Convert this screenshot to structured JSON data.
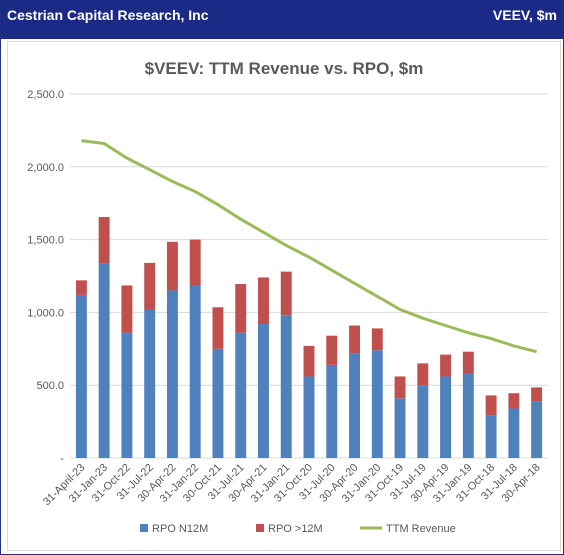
{
  "header": {
    "company": "Cestrian Capital Research, Inc",
    "ticker": "VEEV, $m"
  },
  "colors": {
    "header_bg": "#1b2a86",
    "rpo_n12m": "#4f81bd",
    "rpo_gt12m": "#c0504d",
    "ttm_revenue": "#9bbb59",
    "gridline": "#d9d9d9"
  },
  "chart_data": {
    "type": "bar",
    "title": "$VEEV: TTM Revenue vs. RPO, $m",
    "xlabel": "",
    "ylabel": "",
    "ylim": [
      0,
      2500
    ],
    "y_ticks": [
      {
        "value": 0,
        "label": "-"
      },
      {
        "value": 500,
        "label": "500.0"
      },
      {
        "value": 1000,
        "label": "1,000.0"
      },
      {
        "value": 1500,
        "label": "1,500.0"
      },
      {
        "value": 2000,
        "label": "2,000.0"
      },
      {
        "value": 2500,
        "label": "2,500.0"
      }
    ],
    "grid": true,
    "stacked": true,
    "legend_position": "bottom",
    "categories": [
      "31-April-23",
      "31-Jan-23",
      "31-Oct-22",
      "31-Jul-22",
      "30-Apr-22",
      "31-Jan-22",
      "30-Oct-21",
      "31-Jul-21",
      "30-Apr-21",
      "31-Jan-21",
      "31-Oct-20",
      "31-Jul-20",
      "30-Apr-20",
      "31-Jan-20",
      "31-Oct-19",
      "31-Jul-19",
      "30-Apr-19",
      "31-Jan-19",
      "31-Oct-18",
      "31-Jul-18",
      "30-Apr-18"
    ],
    "series": [
      {
        "name": "RPO N12M",
        "kind": "bar",
        "values": [
          1120,
          1335,
          860,
          1020,
          1150,
          1185,
          750,
          860,
          920,
          980,
          560,
          640,
          720,
          740,
          410,
          500,
          560,
          580,
          290,
          340,
          390
        ]
      },
      {
        "name": "RPO >12M",
        "kind": "bar",
        "values": [
          100,
          320,
          325,
          320,
          335,
          315,
          285,
          335,
          320,
          300,
          210,
          200,
          190,
          150,
          150,
          150,
          150,
          150,
          140,
          105,
          95
        ]
      },
      {
        "name": "TTM Revenue",
        "kind": "line",
        "values": [
          2180,
          2160,
          2060,
          1980,
          1900,
          1830,
          1740,
          1640,
          1550,
          1460,
          1380,
          1290,
          1200,
          1110,
          1020,
          960,
          910,
          860,
          820,
          770,
          730
        ]
      }
    ]
  }
}
